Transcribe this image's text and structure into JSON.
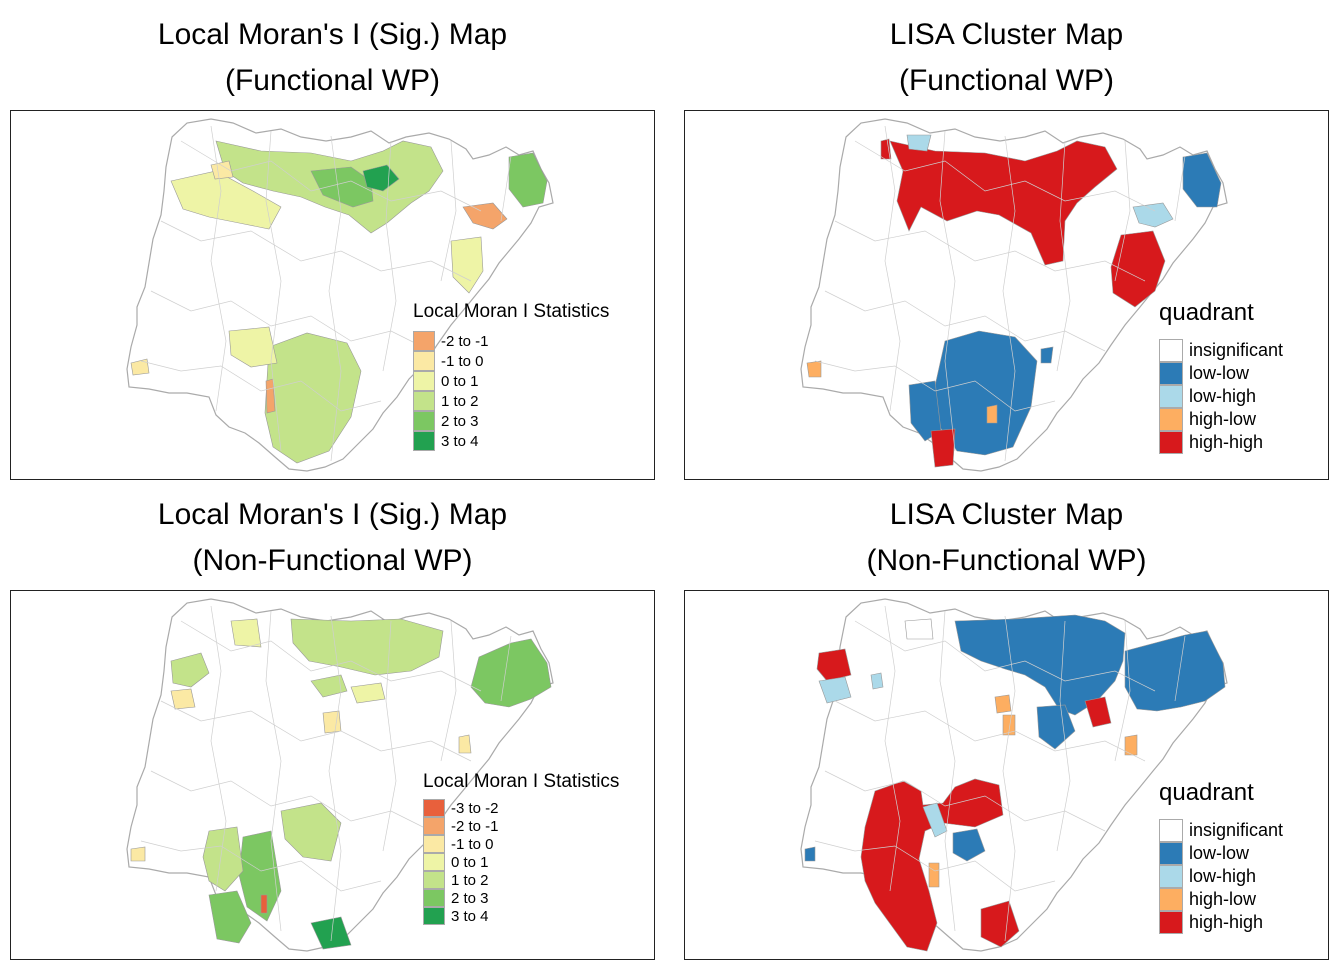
{
  "panels": [
    {
      "title_line1": "Local Moran's I (Sig.) Map",
      "title_line2": "(Functional WP)",
      "legend_title": "Local Moran I Statistics",
      "legend": [
        {
          "label": "-2 to -1",
          "color": "#f4a46a"
        },
        {
          "label": "-1 to 0",
          "color": "#fbe9a4"
        },
        {
          "label": "0 to 1",
          "color": "#eef4a6"
        },
        {
          "label": "1 to 2",
          "color": "#c3e38a"
        },
        {
          "label": "2 to 3",
          "color": "#7cc762"
        },
        {
          "label": "3 to 4",
          "color": "#22a150"
        }
      ]
    },
    {
      "title_line1": "LISA Cluster Map",
      "title_line2": "(Functional WP)",
      "legend_title": "quadrant",
      "legend": [
        {
          "label": "insignificant",
          "color": "#ffffff"
        },
        {
          "label": "low-low",
          "color": "#2c7bb6"
        },
        {
          "label": "low-high",
          "color": "#abd9e9"
        },
        {
          "label": "high-low",
          "color": "#fdae61"
        },
        {
          "label": "high-high",
          "color": "#d7191c"
        }
      ]
    },
    {
      "title_line1": "Local Moran's I (Sig.) Map",
      "title_line2": "(Non-Functional WP)",
      "legend_title": "Local Moran I Statistics",
      "legend": [
        {
          "label": "-3 to -2",
          "color": "#e8603c"
        },
        {
          "label": "-2 to -1",
          "color": "#f4a46a"
        },
        {
          "label": "-1 to 0",
          "color": "#fbe9a4"
        },
        {
          "label": "0 to 1",
          "color": "#eef4a6"
        },
        {
          "label": "1 to 2",
          "color": "#c3e38a"
        },
        {
          "label": "2 to 3",
          "color": "#7cc762"
        },
        {
          "label": "3 to 4",
          "color": "#22a150"
        }
      ]
    },
    {
      "title_line1": "LISA Cluster Map",
      "title_line2": "(Non-Functional WP)",
      "legend_title": "quadrant",
      "legend": [
        {
          "label": "insignificant",
          "color": "#ffffff"
        },
        {
          "label": "low-low",
          "color": "#2c7bb6"
        },
        {
          "label": "low-high",
          "color": "#abd9e9"
        },
        {
          "label": "high-low",
          "color": "#fdae61"
        },
        {
          "label": "high-high",
          "color": "#d7191c"
        }
      ]
    }
  ]
}
